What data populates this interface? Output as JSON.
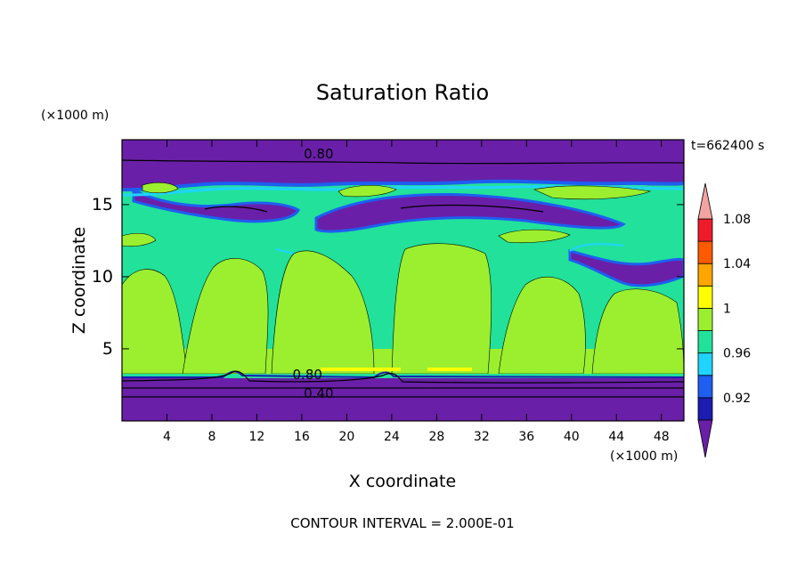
{
  "chart_data": {
    "type": "heatmap",
    "title": "Saturation Ratio",
    "xlabel": "X coordinate",
    "ylabel": "Z coordinate",
    "x_unit": "(×1000 m)",
    "y_unit": "(×1000 m)",
    "time_label": "t=662400 s",
    "footer": "CONTOUR INTERVAL = 2.000E-01",
    "xlim": [
      0,
      50
    ],
    "ylim": [
      0,
      19.5
    ],
    "x_ticks": [
      4,
      8,
      12,
      16,
      20,
      24,
      28,
      32,
      36,
      40,
      44,
      48
    ],
    "y_ticks": [
      5,
      10,
      15
    ],
    "contour_labels": [
      {
        "text": "0.80",
        "x": 17.5,
        "z": 18.2
      },
      {
        "text": "0.80",
        "x": 16.5,
        "z": 2.9
      },
      {
        "text": "0.40",
        "x": 17.5,
        "z": 1.6
      }
    ],
    "colorbar": {
      "labels": [
        "1.08",
        "1.04",
        "1",
        "0.96",
        "0.92"
      ],
      "levels": [
        0.9,
        0.92,
        0.94,
        0.96,
        0.98,
        1.0,
        1.02,
        1.04,
        1.06,
        1.08,
        1.1
      ],
      "colors": [
        "#6a1fa8",
        "#1c1cb0",
        "#1e5ef0",
        "#1fd4ff",
        "#22e19b",
        "#9bef2e",
        "#ffff00",
        "#ffa500",
        "#ff5a00",
        "#ee1c2a",
        "#f4a3a3"
      ]
    },
    "bands": [
      {
        "z0": 0,
        "z1": 3.2,
        "color": "#6a1fa8"
      },
      {
        "z0": 3.2,
        "z1": 5.0,
        "color": "#9bef2e"
      },
      {
        "z0": 5.0,
        "z1": 13.5,
        "color": "#22e19b"
      },
      {
        "z0": 13.5,
        "z1": 17.0,
        "color": "#22e19b"
      },
      {
        "z0": 17.0,
        "z1": 19.5,
        "color": "#6a1fa8"
      }
    ]
  }
}
